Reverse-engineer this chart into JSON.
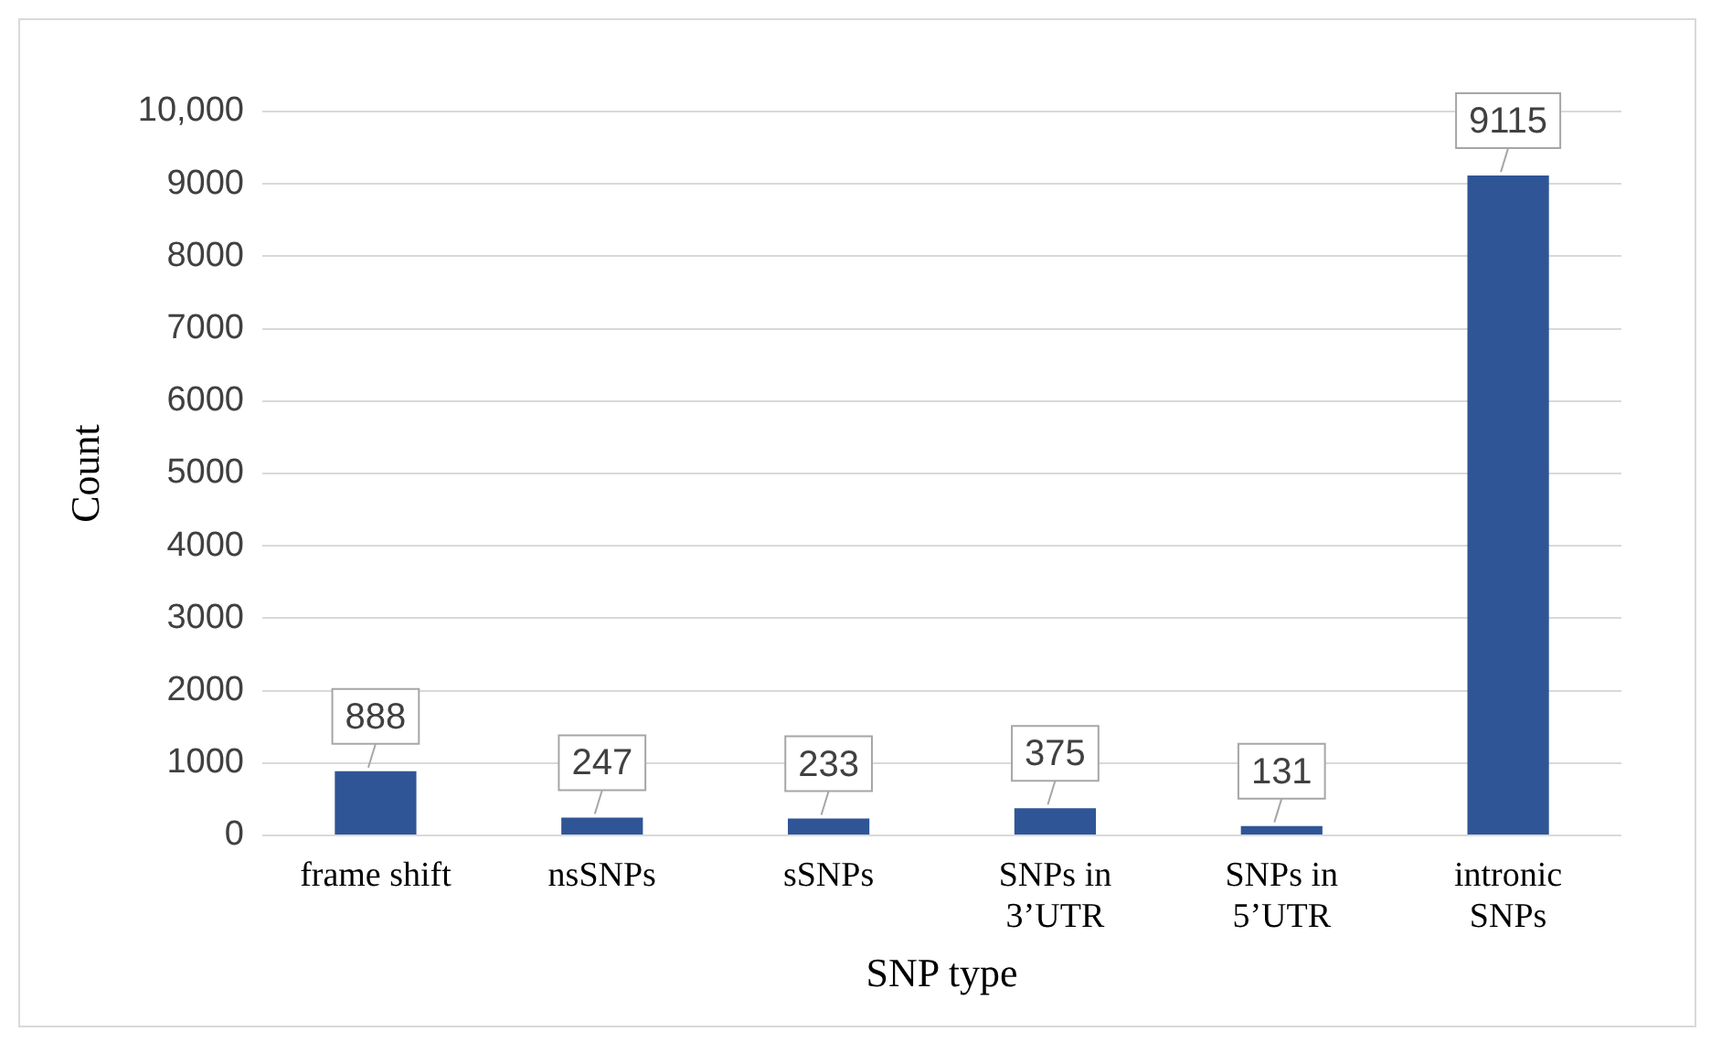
{
  "chart_data": {
    "type": "bar",
    "xlabel": "SNP type",
    "ylabel": "Count",
    "categories": [
      "frame shift",
      "nsSNPs",
      "sSNPs",
      "SNPs in 3’UTR",
      "SNPs in 5’UTR",
      "intronic SNPs"
    ],
    "values": [
      888,
      247,
      233,
      375,
      131,
      9115
    ],
    "color": "#2f5597",
    "data_labels": true,
    "ylim": [
      0,
      10000
    ],
    "yticks": [
      0,
      1000,
      2000,
      3000,
      4000,
      5000,
      6000,
      7000,
      8000,
      9000,
      {
        "value": 10000,
        "label": "10,000"
      }
    ],
    "grid": "y",
    "legend": false
  }
}
